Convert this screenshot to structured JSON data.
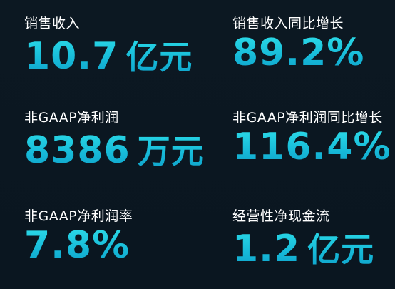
{
  "metrics": [
    {
      "label": "销售收入",
      "value": "10.7",
      "unit": "亿元"
    },
    {
      "label": "销售收入同比增长",
      "value": "89.2%",
      "unit": ""
    },
    {
      "label": "非GAAP净利润",
      "value": "8386",
      "unit": "万元"
    },
    {
      "label": "非GAAP净利润同比增长",
      "value": "116.4%",
      "unit": ""
    },
    {
      "label": "非GAAP净利润率",
      "value": "7.8%",
      "unit": ""
    },
    {
      "label": "经营性净现金流",
      "value": "1.2",
      "unit": "亿元"
    }
  ],
  "colors": {
    "background": "#0b1722",
    "label": "#ffffff",
    "value_top": "#2fe0ea",
    "value_bottom": "#0e9fc8"
  }
}
